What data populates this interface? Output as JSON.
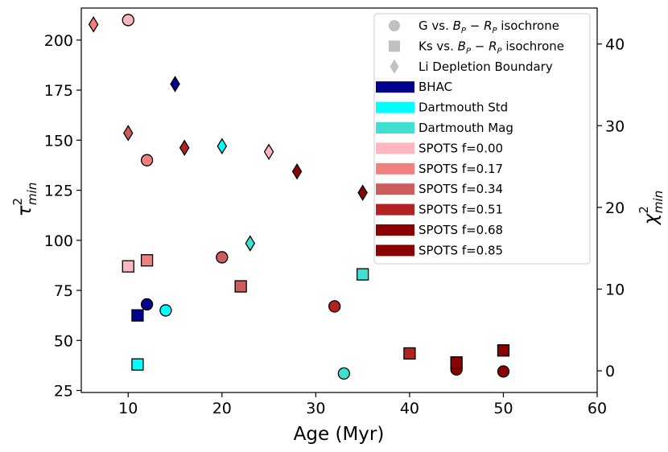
{
  "chart_data": {
    "type": "scatter",
    "xlabel": "Age (Myr)",
    "ylabel_left": "τ²min",
    "ylabel_right": "χ²min",
    "xlim": [
      5,
      60
    ],
    "ylim_left": [
      24,
      216
    ],
    "ylim_right": [
      -2.65,
      44.4
    ],
    "x_ticks": [
      10,
      20,
      30,
      40,
      50,
      60
    ],
    "y_ticks_left": [
      25,
      50,
      75,
      100,
      125,
      150,
      175,
      200
    ],
    "y_ticks_right": [
      0,
      10,
      20,
      30,
      40
    ],
    "models": [
      {
        "name": "BHAC",
        "color": "#00008b"
      },
      {
        "name": "Dartmouth Std",
        "color": "#00ffff"
      },
      {
        "name": "Dartmouth Mag",
        "color": "#40e0d0"
      },
      {
        "name": "SPOTS f=0.00",
        "color": "#ffb6c1"
      },
      {
        "name": "SPOTS f=0.17",
        "color": "#f08080"
      },
      {
        "name": "SPOTS f=0.34",
        "color": "#cd5c5c"
      },
      {
        "name": "SPOTS f=0.51",
        "color": "#b22222"
      },
      {
        "name": "SPOTS f=0.68",
        "color": "#8b0000"
      },
      {
        "name": "SPOTS f=0.85",
        "color": "#8b0000"
      }
    ],
    "marker_types": [
      {
        "marker": "circle",
        "label_main": "G vs. ",
        "label_math": "B",
        "label_sub1": "P",
        "label_mid": " − ",
        "label_math2": "R",
        "label_sub2": "P",
        "label_tail": " isochrone"
      },
      {
        "marker": "square",
        "label_main": "Ks vs. ",
        "label_math": "B",
        "label_sub1": "P",
        "label_mid": " − ",
        "label_math2": "R",
        "label_sub2": "P",
        "label_tail": " isochrone"
      },
      {
        "marker": "diamond",
        "label_main": "Li Depletion Boundary"
      }
    ],
    "series": [
      {
        "name": "G vs. BP−RP isochrone",
        "marker": "circle",
        "axis": "left",
        "points": [
          {
            "model": "SPOTS f=0.00",
            "x": 10,
            "y": 210
          },
          {
            "model": "SPOTS f=0.17",
            "x": 12,
            "y": 140
          },
          {
            "model": "SPOTS f=0.34",
            "x": 20,
            "y": 91.5
          },
          {
            "model": "BHAC",
            "x": 12,
            "y": 68
          },
          {
            "model": "Dartmouth Std",
            "x": 14,
            "y": 65
          },
          {
            "model": "SPOTS f=0.51",
            "x": 32,
            "y": 67
          },
          {
            "model": "Dartmouth Mag",
            "x": 33,
            "y": 33.5
          },
          {
            "model": "SPOTS f=0.68",
            "x": 45,
            "y": 35.5
          },
          {
            "model": "SPOTS f=0.85",
            "x": 50,
            "y": 34.5
          }
        ]
      },
      {
        "name": "Ks vs. BP−RP isochrone",
        "marker": "square",
        "axis": "left",
        "points": [
          {
            "model": "SPOTS f=0.00",
            "x": 10,
            "y": 87
          },
          {
            "model": "SPOTS f=0.17",
            "x": 12,
            "y": 90
          },
          {
            "model": "BHAC",
            "x": 11,
            "y": 62.5
          },
          {
            "model": "Dartmouth Std",
            "x": 11,
            "y": 38
          },
          {
            "model": "SPOTS f=0.34",
            "x": 22,
            "y": 77
          },
          {
            "model": "Dartmouth Mag",
            "x": 35,
            "y": 83
          },
          {
            "model": "SPOTS f=0.51",
            "x": 40,
            "y": 43.5
          },
          {
            "model": "SPOTS f=0.68",
            "x": 45,
            "y": 39
          },
          {
            "model": "SPOTS f=0.85",
            "x": 50,
            "y": 45
          }
        ]
      },
      {
        "name": "Li Depletion Boundary",
        "marker": "diamond",
        "axis": "right",
        "points": [
          {
            "model": "SPOTS f=0.17",
            "x": 6.3,
            "y": 42.4
          },
          {
            "model": "BHAC",
            "x": 15,
            "y": 35.1
          },
          {
            "model": "SPOTS f=0.34",
            "x": 10,
            "y": 29.1
          },
          {
            "model": "Dartmouth Std",
            "x": 20,
            "y": 27.5
          },
          {
            "model": "SPOTS f=0.51",
            "x": 16,
            "y": 27.3
          },
          {
            "model": "SPOTS f=0.00",
            "x": 25,
            "y": 26.8
          },
          {
            "model": "SPOTS f=0.68",
            "x": 28,
            "y": 24.4
          },
          {
            "model": "SPOTS f=0.85",
            "x": 35,
            "y": 21.8
          },
          {
            "model": "Dartmouth Mag",
            "x": 23,
            "y": 15.6
          }
        ]
      }
    ]
  }
}
